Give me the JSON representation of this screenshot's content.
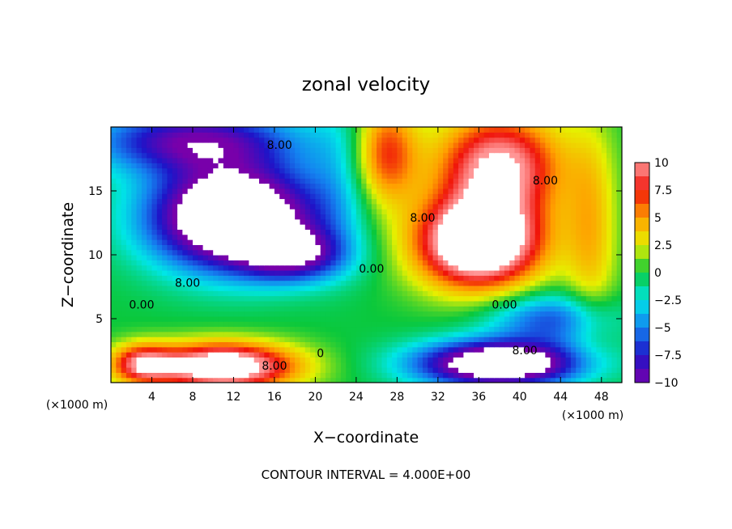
{
  "chart_data": {
    "type": "heatmap",
    "title": "zonal velocity",
    "xlabel": "X−coordinate",
    "ylabel": "Z−coordinate",
    "x_unit_label": "(×1000 m)",
    "y_unit_label": "(×1000 m)",
    "footer": "CONTOUR INTERVAL = 4.000E+00",
    "xlim": [
      0,
      50
    ],
    "ylim": [
      0,
      20
    ],
    "x_ticks": [
      4,
      8,
      12,
      16,
      20,
      24,
      28,
      32,
      36,
      40,
      44,
      48
    ],
    "y_ticks": [
      5,
      10,
      15
    ],
    "colorbar": {
      "range": [
        -10,
        10
      ],
      "ticks": [
        10,
        7.5,
        5,
        2.5,
        0,
        -2.5,
        -5,
        -7.5,
        -10
      ],
      "tick_labels": [
        "10",
        "7.5",
        "5",
        "2.5",
        "0",
        "−2.5",
        "−5",
        "−7.5",
        "−10"
      ]
    },
    "contour_interval": 4.0,
    "contour_labels": [
      {
        "text": "8.00",
        "x": 16.5,
        "y": 18.3
      },
      {
        "text": "8.00",
        "x": 42.5,
        "y": 15.5
      },
      {
        "text": "8.00",
        "x": 30.5,
        "y": 12.6
      },
      {
        "text": "8.00",
        "x": 7.5,
        "y": 7.5
      },
      {
        "text": "0.00",
        "x": 25.5,
        "y": 8.6
      },
      {
        "text": "0.00",
        "x": 3.0,
        "y": 5.8
      },
      {
        "text": "0.00",
        "x": 38.5,
        "y": 5.8
      },
      {
        "text": "8.00",
        "x": 40.5,
        "y": 2.2
      },
      {
        "text": "8.00",
        "x": 16.0,
        "y": 1.0
      },
      {
        "text": "0",
        "x": 20.5,
        "y": 2.0
      }
    ],
    "features": [
      {
        "x": 12,
        "y": 13,
        "sx": 8,
        "sy": 4,
        "amp": -17
      },
      {
        "x": 18,
        "y": 10,
        "sx": 5,
        "sy": 2,
        "amp": -8
      },
      {
        "x": 8,
        "y": 19,
        "sx": 10,
        "sy": 2.5,
        "amp": -9
      },
      {
        "x": 36,
        "y": 11,
        "sx": 6,
        "sy": 3.5,
        "amp": 16
      },
      {
        "x": 38,
        "y": 17,
        "sx": 6,
        "sy": 4,
        "amp": 11
      },
      {
        "x": 27,
        "y": 18,
        "sx": 3,
        "sy": 4,
        "amp": 7
      },
      {
        "x": 38,
        "y": 1.5,
        "sx": 8,
        "sy": 1.8,
        "amp": -15
      },
      {
        "x": 43,
        "y": 5,
        "sx": 6,
        "sy": 2,
        "amp": -6
      },
      {
        "x": 11,
        "y": 1.3,
        "sx": 7,
        "sy": 1.8,
        "amp": 14
      },
      {
        "x": 3,
        "y": 1.5,
        "sx": 3,
        "sy": 1.5,
        "amp": 8
      },
      {
        "x": 47,
        "y": 12,
        "sx": 2.5,
        "sy": 8,
        "amp": 4
      },
      {
        "x": 22,
        "y": 16,
        "sx": 3,
        "sy": 6,
        "amp": -2
      }
    ],
    "grid": false,
    "legend_position": "right"
  }
}
